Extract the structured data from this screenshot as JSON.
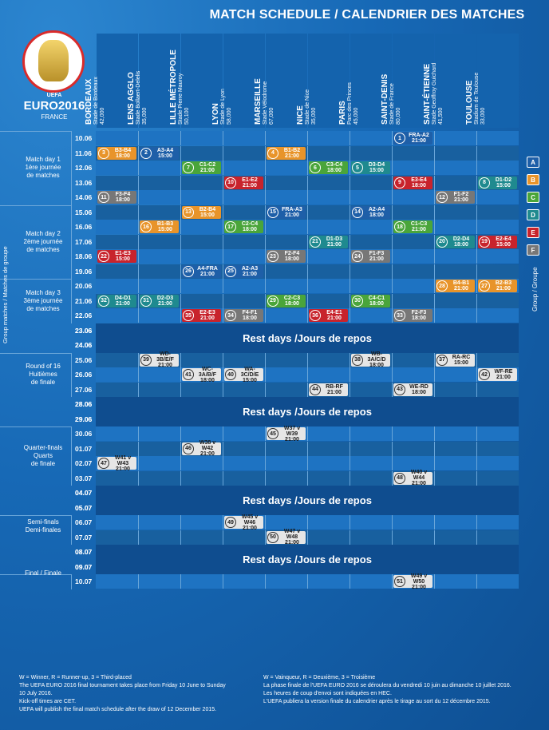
{
  "title": "MATCH SCHEDULE / CALENDRIER DES MATCHES",
  "logo": {
    "uefa": "UEFA",
    "euro": "EURO2016",
    "country": "FRANCE"
  },
  "venues": [
    {
      "city": "BORDEAUX",
      "stadium": "Stade de Bordeaux",
      "capacity": "42,000"
    },
    {
      "city": "LENS AGGLO",
      "stadium": "Stade Bollaert-Delelis",
      "capacity": "35,000"
    },
    {
      "city": "LILLE MÉTROPOLE",
      "stadium": "Stade Pierre Mauroy",
      "capacity": "50,100"
    },
    {
      "city": "LYON",
      "stadium": "Stade de Lyon",
      "capacity": "58,000"
    },
    {
      "city": "MARSEILLE",
      "stadium": "Stade Vélodrome",
      "capacity": "67,000"
    },
    {
      "city": "NICE",
      "stadium": "Stade de Nice",
      "capacity": "35,000"
    },
    {
      "city": "PARIS",
      "stadium": "Parc des Princes",
      "capacity": "45,000"
    },
    {
      "city": "SAINT-DENIS",
      "stadium": "Stade de France",
      "capacity": "80,000"
    },
    {
      "city": "SAINT-ÉTIENNE",
      "stadium": "Stade Geoffroy Guichard",
      "capacity": "41,500"
    },
    {
      "city": "TOULOUSE",
      "stadium": "Stadium de Toulouse",
      "capacity": "33,000"
    }
  ],
  "dates": [
    "10.06",
    "11.06",
    "12.06",
    "13.06",
    "14.06",
    "15.06",
    "16.06",
    "17.06",
    "18.06",
    "19.06",
    "20.06",
    "21.06",
    "22.06",
    "23.06",
    "24.06",
    "25.06",
    "26.06",
    "27.06",
    "28.06",
    "29.06",
    "30.06",
    "01.07",
    "02.07",
    "03.07",
    "04.07",
    "05.07",
    "06.07",
    "07.07",
    "08.07",
    "09.07",
    "10.07"
  ],
  "stages": [
    {
      "label": "Match day 1\n1ère journée\nde matches"
    },
    {
      "label": "Match day 2\n2ème journée\nde matches"
    },
    {
      "label": "Match day 3\n3ème journée\nde matches"
    },
    {
      "label": "Round of 16\nHuitièmes\nde finale"
    },
    {
      "label": "Quarter-finals\nQuarts\nde finale"
    },
    {
      "label": "Semi-finals\nDemi-finales"
    },
    {
      "label": "Final / Finale"
    }
  ],
  "rest_label": "Rest days /Jours de repos",
  "side_left": "Group matches / Matches de groupe",
  "side_right": "Group / Groupe",
  "groups": [
    {
      "letter": "A",
      "color": "#1e5fa8"
    },
    {
      "letter": "B",
      "color": "#e8942a"
    },
    {
      "letter": "C",
      "color": "#4aa53a"
    },
    {
      "letter": "D",
      "color": "#1f8a8f"
    },
    {
      "letter": "E",
      "color": "#c8232c"
    },
    {
      "letter": "F",
      "color": "#777777"
    }
  ],
  "matches": [
    {
      "n": "1",
      "t1": "FRA-A2",
      "t2": "21:00",
      "d": 0,
      "v": 7,
      "g": "A"
    },
    {
      "n": "3",
      "t1": "B3-B4",
      "t2": "18:00",
      "d": 1,
      "v": 0,
      "g": "B"
    },
    {
      "n": "2",
      "t1": "A3-A4",
      "t2": "15:00",
      "d": 1,
      "v": 1,
      "g": "A"
    },
    {
      "n": "4",
      "t1": "B1-B2",
      "t2": "21:00",
      "d": 1,
      "v": 4,
      "g": "B"
    },
    {
      "n": "7",
      "t1": "C1-C2",
      "t2": "21:00",
      "d": 2,
      "v": 2,
      "g": "C"
    },
    {
      "n": "6",
      "t1": "C3-C4",
      "t2": "18:00",
      "d": 2,
      "v": 5,
      "g": "C"
    },
    {
      "n": "5",
      "t1": "D3-D4",
      "t2": "15:00",
      "d": 2,
      "v": 6,
      "g": "D"
    },
    {
      "n": "10",
      "t1": "E1-E2",
      "t2": "21:00",
      "d": 3,
      "v": 3,
      "g": "E"
    },
    {
      "n": "9",
      "t1": "E3-E4",
      "t2": "18:00",
      "d": 3,
      "v": 7,
      "g": "E"
    },
    {
      "n": "8",
      "t1": "D1-D2",
      "t2": "15:00",
      "d": 3,
      "v": 9,
      "g": "D"
    },
    {
      "n": "11",
      "t1": "F3-F4",
      "t2": "18:00",
      "d": 4,
      "v": 0,
      "g": "F"
    },
    {
      "n": "12",
      "t1": "F1-F2",
      "t2": "21:00",
      "d": 4,
      "v": 8,
      "g": "F"
    },
    {
      "n": "13",
      "t1": "B2-B4",
      "t2": "15:00",
      "d": 5,
      "v": 2,
      "g": "B"
    },
    {
      "n": "15",
      "t1": "FRA-A3",
      "t2": "21:00",
      "d": 5,
      "v": 4,
      "g": "A"
    },
    {
      "n": "14",
      "t1": "A2-A4",
      "t2": "18:00",
      "d": 5,
      "v": 6,
      "g": "A"
    },
    {
      "n": "16",
      "t1": "B1-B3",
      "t2": "15:00",
      "d": 6,
      "v": 1,
      "g": "B"
    },
    {
      "n": "17",
      "t1": "C2-C4",
      "t2": "18:00",
      "d": 6,
      "v": 3,
      "g": "C"
    },
    {
      "n": "18",
      "t1": "C1-C3",
      "t2": "21:00",
      "d": 6,
      "v": 7,
      "g": "C"
    },
    {
      "n": "21",
      "t1": "D1-D3",
      "t2": "21:00",
      "d": 7,
      "v": 5,
      "g": "D"
    },
    {
      "n": "20",
      "t1": "D2-D4",
      "t2": "18:00",
      "d": 7,
      "v": 8,
      "g": "D"
    },
    {
      "n": "19",
      "t1": "E2-E4",
      "t2": "15:00",
      "d": 7,
      "v": 9,
      "g": "E"
    },
    {
      "n": "22",
      "t1": "E1-E3",
      "t2": "15:00",
      "d": 8,
      "v": 0,
      "g": "E"
    },
    {
      "n": "23",
      "t1": "F2-F4",
      "t2": "18:00",
      "d": 8,
      "v": 4,
      "g": "F"
    },
    {
      "n": "24",
      "t1": "F1-F3",
      "t2": "21:00",
      "d": 8,
      "v": 6,
      "g": "F"
    },
    {
      "n": "26",
      "t1": "A4-FRA",
      "t2": "21:00",
      "d": 9,
      "v": 2,
      "g": "A"
    },
    {
      "n": "25",
      "t1": "A2-A3",
      "t2": "21:00",
      "d": 9,
      "v": 3,
      "g": "A"
    },
    {
      "n": "28",
      "t1": "B4-B1",
      "t2": "21:00",
      "d": 10,
      "v": 8,
      "g": "B"
    },
    {
      "n": "27",
      "t1": "B2-B3",
      "t2": "21:00",
      "d": 10,
      "v": 9,
      "g": "B"
    },
    {
      "n": "32",
      "t1": "D4-D1",
      "t2": "21:00",
      "d": 11,
      "v": 0,
      "g": "D"
    },
    {
      "n": "31",
      "t1": "D2-D3",
      "t2": "21:00",
      "d": 11,
      "v": 1,
      "g": "D"
    },
    {
      "n": "29",
      "t1": "C2-C3",
      "t2": "18:00",
      "d": 11,
      "v": 4,
      "g": "C"
    },
    {
      "n": "30",
      "t1": "C4-C1",
      "t2": "18:00",
      "d": 11,
      "v": 6,
      "g": "C"
    },
    {
      "n": "35",
      "t1": "E2-E3",
      "t2": "21:00",
      "d": 12,
      "v": 2,
      "g": "E"
    },
    {
      "n": "34",
      "t1": "F4-F1",
      "t2": "18:00",
      "d": 12,
      "v": 3,
      "g": "F"
    },
    {
      "n": "36",
      "t1": "E4-E1",
      "t2": "21:00",
      "d": 12,
      "v": 5,
      "g": "E"
    },
    {
      "n": "33",
      "t1": "F2-F3",
      "t2": "18:00",
      "d": 12,
      "v": 7,
      "g": "F"
    },
    {
      "n": "39",
      "t1": "WD-3B/E/F",
      "t2": "21:00",
      "d": 15,
      "v": 1,
      "g": "K"
    },
    {
      "n": "38",
      "t1": "WB-3A/C/D",
      "t2": "18:00",
      "d": 15,
      "v": 6,
      "g": "K"
    },
    {
      "n": "37",
      "t1": "RA-RC",
      "t2": "15:00",
      "d": 15,
      "v": 8,
      "g": "K"
    },
    {
      "n": "41",
      "t1": "WC-3A/B/F",
      "t2": "18:00",
      "d": 16,
      "v": 2,
      "g": "K"
    },
    {
      "n": "40",
      "t1": "WA-3C/D/E",
      "t2": "15:00",
      "d": 16,
      "v": 3,
      "g": "K"
    },
    {
      "n": "42",
      "t1": "WF-RE",
      "t2": "21:00",
      "d": 16,
      "v": 9,
      "g": "K"
    },
    {
      "n": "44",
      "t1": "RB-RF",
      "t2": "21:00",
      "d": 17,
      "v": 5,
      "g": "K"
    },
    {
      "n": "43",
      "t1": "WE-RD",
      "t2": "18:00",
      "d": 17,
      "v": 7,
      "g": "K"
    },
    {
      "n": "45",
      "t1": "W37 v W39",
      "t2": "21:00",
      "d": 20,
      "v": 4,
      "g": "K"
    },
    {
      "n": "46",
      "t1": "W38 v W42",
      "t2": "21:00",
      "d": 21,
      "v": 2,
      "g": "K"
    },
    {
      "n": "47",
      "t1": "W41 v W43",
      "t2": "21:00",
      "d": 22,
      "v": 0,
      "g": "K"
    },
    {
      "n": "48",
      "t1": "W40 v W44",
      "t2": "21:00",
      "d": 23,
      "v": 7,
      "g": "K"
    },
    {
      "n": "49",
      "t1": "W45 v W46",
      "t2": "21:00",
      "d": 26,
      "v": 3,
      "g": "K"
    },
    {
      "n": "50",
      "t1": "W47 v W48",
      "t2": "21:00",
      "d": 27,
      "v": 4,
      "g": "K"
    },
    {
      "n": "51",
      "t1": "W49 v W50",
      "t2": "21:00",
      "d": 30,
      "v": 7,
      "g": "K"
    }
  ],
  "footer_left": [
    "W = Winner, R = Runner-up, 3 = Third-placed",
    "The UEFA EURO 2016 final tournament takes place from Friday 10 June to Sunday",
    "10 July 2016.",
    "Kick-off times are CET.",
    "UEFA will publish the final match schedule after the draw of 12 December 2015."
  ],
  "footer_right": [
    "W = Vainqueur, R = Deuxième, 3 = Troisième",
    "La phase finale de l'UEFA EURO 2016 se déroulera du vendredi 10 juin au dimanche 10 juillet 2016.",
    "Les heures de coup d'envoi sont indiquées en HEC.",
    "L'UEFA publiera la version finale du calendrier après le tirage au sort du 12 décembre 2015."
  ]
}
